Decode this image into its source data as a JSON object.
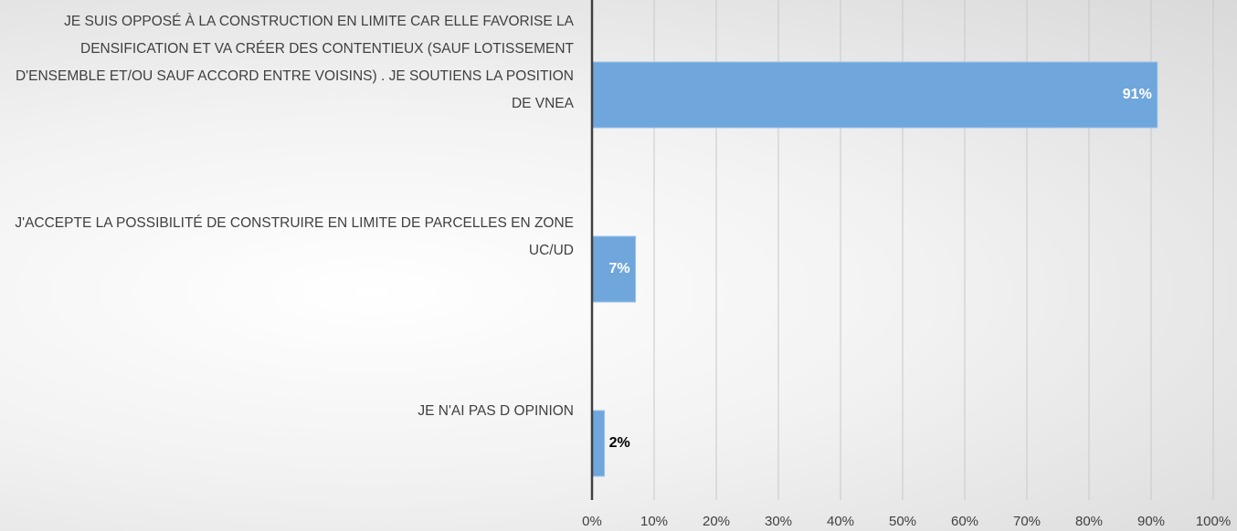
{
  "chart_data": {
    "type": "barh",
    "categories": [
      "JE SUIS OPPOSÉ À LA CONSTRUCTION EN LIMITE CAR ELLE FAVORISE LA DENSIFICATION ET VA CRÉER DES CONTENTIEUX (SAUF LOTISSEMENT D'ENSEMBLE ET/OU SAUF ACCORD ENTRE VOISINS) . JE SOUTIENS LA POSITION DE VNEA",
      "J'ACCEPTE LA POSSIBILITÉ DE CONSTRUIRE EN LIMITE DE PARCELLES EN ZONE UC/UD",
      "JE N'AI PAS D OPINION"
    ],
    "values": [
      91,
      7,
      2
    ],
    "value_labels": [
      "91%",
      "7%",
      "2%"
    ],
    "color": "#6fa6db",
    "xlim": [
      0,
      100
    ],
    "xticks": [
      {
        "value": 0,
        "label": "0%"
      },
      {
        "value": 10,
        "label": "10%"
      },
      {
        "value": 20,
        "label": "20%"
      },
      {
        "value": 30,
        "label": "30%"
      },
      {
        "value": 40,
        "label": "40%"
      },
      {
        "value": 50,
        "label": "50%"
      },
      {
        "value": 60,
        "label": "60%"
      },
      {
        "value": 70,
        "label": "70%"
      },
      {
        "value": 80,
        "label": "80%"
      },
      {
        "value": 90,
        "label": "90%"
      },
      {
        "value": 100,
        "label": "100%"
      }
    ],
    "grid": true
  }
}
